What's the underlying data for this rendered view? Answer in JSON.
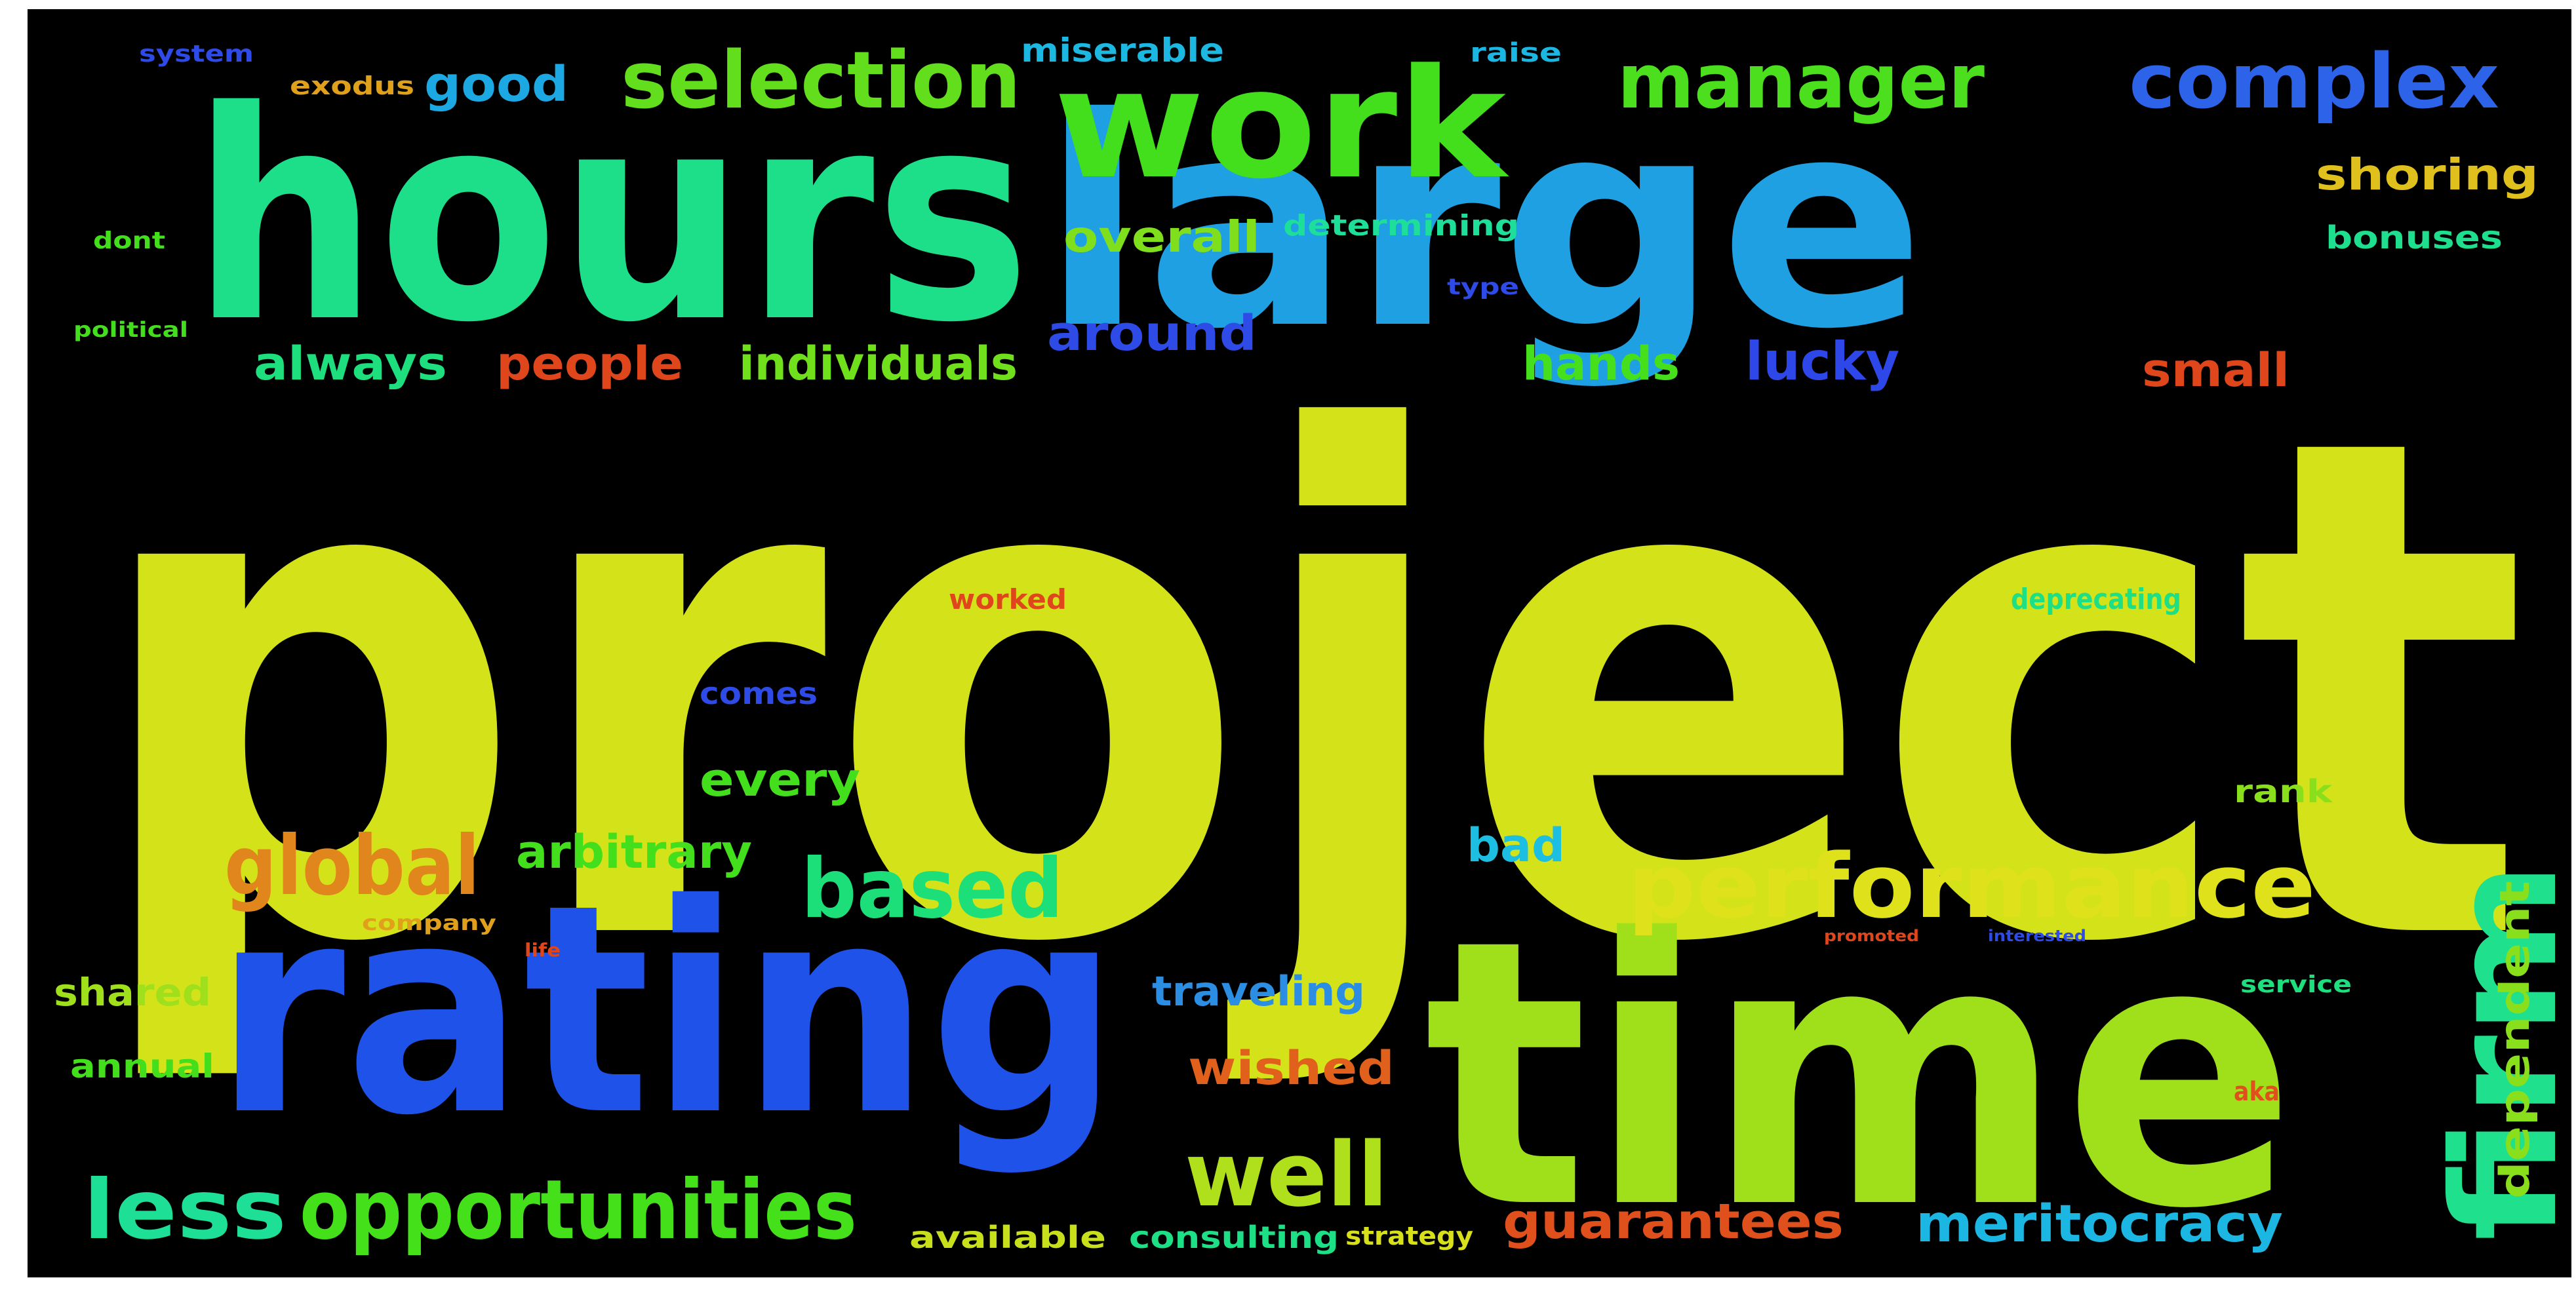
{
  "words": [
    {
      "text": "project",
      "color": "#d4e21a"
    },
    {
      "text": "hours",
      "color": "#1ddf8a"
    },
    {
      "text": "large",
      "color": "#1ea0e2"
    },
    {
      "text": "rating",
      "color": "#1f52e8"
    },
    {
      "text": "time",
      "color": "#a0e01a"
    },
    {
      "text": "work",
      "color": "#43df1c"
    },
    {
      "text": "firm",
      "color": "#1fe08c"
    },
    {
      "text": "performance",
      "color": "#dfe21a"
    },
    {
      "text": "opportunities",
      "color": "#44e01a"
    },
    {
      "text": "selection",
      "color": "#62de1c"
    },
    {
      "text": "manager",
      "color": "#4cdf1d"
    },
    {
      "text": "complex",
      "color": "#2c63e8"
    },
    {
      "text": "global",
      "color": "#e0861c"
    },
    {
      "text": "based",
      "color": "#1ddf7a"
    },
    {
      "text": "well",
      "color": "#b0e01b"
    },
    {
      "text": "less",
      "color": "#1ddf95"
    },
    {
      "text": "meritocracy",
      "color": "#1cb6e2"
    },
    {
      "text": "guarantees",
      "color": "#e0501c"
    },
    {
      "text": "good",
      "color": "#1ca8e2"
    },
    {
      "text": "miserable",
      "color": "#1cb8e2"
    },
    {
      "text": "shoring",
      "color": "#e0c01c"
    },
    {
      "text": "bonuses",
      "color": "#1ddf8e"
    },
    {
      "text": "overall",
      "color": "#80df1c"
    },
    {
      "text": "determining",
      "color": "#1ddf9a"
    },
    {
      "text": "around",
      "color": "#2e4be8"
    },
    {
      "text": "always",
      "color": "#1ddf7e"
    },
    {
      "text": "people",
      "color": "#e0461c"
    },
    {
      "text": "individuals",
      "color": "#70df1c"
    },
    {
      "text": "hands",
      "color": "#46df1c"
    },
    {
      "text": "lucky",
      "color": "#2e47e8"
    },
    {
      "text": "small",
      "color": "#e0461c"
    },
    {
      "text": "every",
      "color": "#44df1c"
    },
    {
      "text": "arbitrary",
      "color": "#44df1c"
    },
    {
      "text": "bad",
      "color": "#1cbfe2"
    },
    {
      "text": "rank",
      "color": "#8adf1c"
    },
    {
      "text": "traveling",
      "color": "#2c8ee2"
    },
    {
      "text": "wished",
      "color": "#e0601c"
    },
    {
      "text": "dependent",
      "color": "#8adf1c"
    },
    {
      "text": "shared",
      "color": "#a0df1c"
    },
    {
      "text": "annual",
      "color": "#44df1c"
    },
    {
      "text": "available",
      "color": "#c8e01c"
    },
    {
      "text": "consulting",
      "color": "#1ddf86"
    },
    {
      "text": "strategy",
      "color": "#d8e01c"
    },
    {
      "text": "comes",
      "color": "#2e4be8"
    },
    {
      "text": "worked",
      "color": "#e0461c"
    },
    {
      "text": "deprecating",
      "color": "#1ddf86"
    },
    {
      "text": "service",
      "color": "#1ddf7e"
    },
    {
      "text": "aka",
      "color": "#e0501c"
    },
    {
      "text": "type",
      "color": "#2e4be8"
    },
    {
      "text": "exodus",
      "color": "#e0a01c"
    },
    {
      "text": "raise",
      "color": "#1cb6e2"
    },
    {
      "text": "system",
      "color": "#2e4be8"
    },
    {
      "text": "dont",
      "color": "#44df1c"
    },
    {
      "text": "political",
      "color": "#44df1c"
    },
    {
      "text": "company",
      "color": "#e0a01c"
    },
    {
      "text": "life",
      "color": "#e0461c"
    },
    {
      "text": "promoted",
      "color": "#e0461c"
    },
    {
      "text": "interested",
      "color": "#2e4be8"
    }
  ]
}
